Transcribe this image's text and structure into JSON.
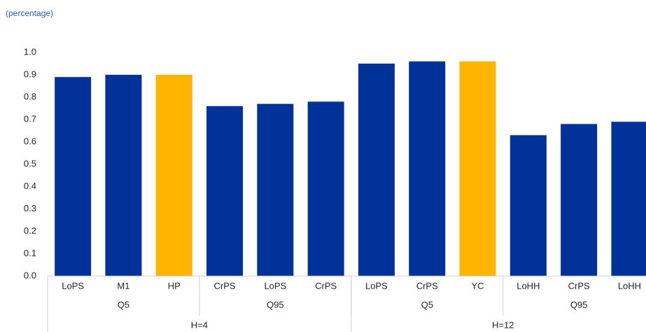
{
  "chart_data": {
    "type": "bar",
    "subtitle": "(percentage)",
    "categories": [
      "LoPS",
      "M1",
      "HP",
      "CrPS",
      "LoPS",
      "CrPS",
      "LoPS",
      "CrPS",
      "YC",
      "LoHH",
      "CrPS",
      "LoHH"
    ],
    "values": [
      0.89,
      0.9,
      0.9,
      0.76,
      0.77,
      0.78,
      0.95,
      0.96,
      0.96,
      0.63,
      0.68,
      0.69
    ],
    "colors": [
      "#003299",
      "#003299",
      "#ffb400",
      "#003299",
      "#003299",
      "#003299",
      "#003299",
      "#003299",
      "#ffb400",
      "#003299",
      "#003299",
      "#003299"
    ],
    "subgroups": [
      {
        "label": "Q5",
        "count": 3
      },
      {
        "label": "Q95",
        "count": 3
      },
      {
        "label": "Q5",
        "count": 3
      },
      {
        "label": "Q95",
        "count": 3
      }
    ],
    "groups": [
      {
        "label": "H=4",
        "count": 6
      },
      {
        "label": "H=12",
        "count": 6
      }
    ],
    "ylim": [
      0,
      1
    ],
    "yticks": [
      {
        "value": 0,
        "label": "0.0"
      },
      0.1,
      0.2,
      0.3,
      0.4,
      0.5,
      0.6,
      0.7,
      0.8,
      0.9,
      {
        "value": 1,
        "label": "1.0"
      }
    ],
    "grid": false
  }
}
